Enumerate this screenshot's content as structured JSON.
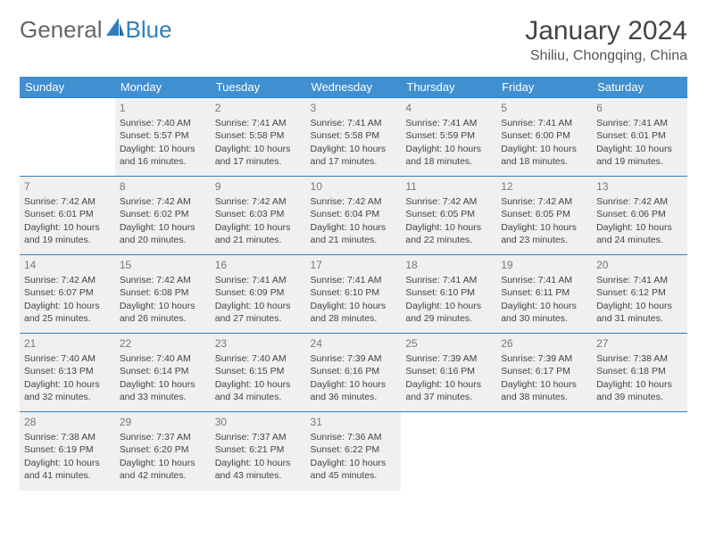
{
  "logo": {
    "text1": "General",
    "text2": "Blue"
  },
  "title": "January 2024",
  "location": "Shiliu, Chongqing, China",
  "colors": {
    "header_bg": "#3f8fd1",
    "border": "#2f7fbf",
    "dim_bg": "#f0f0f0",
    "text": "#444444"
  },
  "day_headers": [
    "Sunday",
    "Monday",
    "Tuesday",
    "Wednesday",
    "Thursday",
    "Friday",
    "Saturday"
  ],
  "weeks": [
    [
      {
        "num": "",
        "lines": []
      },
      {
        "num": "1",
        "lines": [
          "Sunrise: 7:40 AM",
          "Sunset: 5:57 PM",
          "Daylight: 10 hours",
          "and 16 minutes."
        ]
      },
      {
        "num": "2",
        "lines": [
          "Sunrise: 7:41 AM",
          "Sunset: 5:58 PM",
          "Daylight: 10 hours",
          "and 17 minutes."
        ]
      },
      {
        "num": "3",
        "lines": [
          "Sunrise: 7:41 AM",
          "Sunset: 5:58 PM",
          "Daylight: 10 hours",
          "and 17 minutes."
        ]
      },
      {
        "num": "4",
        "lines": [
          "Sunrise: 7:41 AM",
          "Sunset: 5:59 PM",
          "Daylight: 10 hours",
          "and 18 minutes."
        ]
      },
      {
        "num": "5",
        "lines": [
          "Sunrise: 7:41 AM",
          "Sunset: 6:00 PM",
          "Daylight: 10 hours",
          "and 18 minutes."
        ]
      },
      {
        "num": "6",
        "lines": [
          "Sunrise: 7:41 AM",
          "Sunset: 6:01 PM",
          "Daylight: 10 hours",
          "and 19 minutes."
        ]
      }
    ],
    [
      {
        "num": "7",
        "lines": [
          "Sunrise: 7:42 AM",
          "Sunset: 6:01 PM",
          "Daylight: 10 hours",
          "and 19 minutes."
        ]
      },
      {
        "num": "8",
        "lines": [
          "Sunrise: 7:42 AM",
          "Sunset: 6:02 PM",
          "Daylight: 10 hours",
          "and 20 minutes."
        ]
      },
      {
        "num": "9",
        "lines": [
          "Sunrise: 7:42 AM",
          "Sunset: 6:03 PM",
          "Daylight: 10 hours",
          "and 21 minutes."
        ]
      },
      {
        "num": "10",
        "lines": [
          "Sunrise: 7:42 AM",
          "Sunset: 6:04 PM",
          "Daylight: 10 hours",
          "and 21 minutes."
        ]
      },
      {
        "num": "11",
        "lines": [
          "Sunrise: 7:42 AM",
          "Sunset: 6:05 PM",
          "Daylight: 10 hours",
          "and 22 minutes."
        ]
      },
      {
        "num": "12",
        "lines": [
          "Sunrise: 7:42 AM",
          "Sunset: 6:05 PM",
          "Daylight: 10 hours",
          "and 23 minutes."
        ]
      },
      {
        "num": "13",
        "lines": [
          "Sunrise: 7:42 AM",
          "Sunset: 6:06 PM",
          "Daylight: 10 hours",
          "and 24 minutes."
        ]
      }
    ],
    [
      {
        "num": "14",
        "lines": [
          "Sunrise: 7:42 AM",
          "Sunset: 6:07 PM",
          "Daylight: 10 hours",
          "and 25 minutes."
        ]
      },
      {
        "num": "15",
        "lines": [
          "Sunrise: 7:42 AM",
          "Sunset: 6:08 PM",
          "Daylight: 10 hours",
          "and 26 minutes."
        ]
      },
      {
        "num": "16",
        "lines": [
          "Sunrise: 7:41 AM",
          "Sunset: 6:09 PM",
          "Daylight: 10 hours",
          "and 27 minutes."
        ]
      },
      {
        "num": "17",
        "lines": [
          "Sunrise: 7:41 AM",
          "Sunset: 6:10 PM",
          "Daylight: 10 hours",
          "and 28 minutes."
        ]
      },
      {
        "num": "18",
        "lines": [
          "Sunrise: 7:41 AM",
          "Sunset: 6:10 PM",
          "Daylight: 10 hours",
          "and 29 minutes."
        ]
      },
      {
        "num": "19",
        "lines": [
          "Sunrise: 7:41 AM",
          "Sunset: 6:11 PM",
          "Daylight: 10 hours",
          "and 30 minutes."
        ]
      },
      {
        "num": "20",
        "lines": [
          "Sunrise: 7:41 AM",
          "Sunset: 6:12 PM",
          "Daylight: 10 hours",
          "and 31 minutes."
        ]
      }
    ],
    [
      {
        "num": "21",
        "lines": [
          "Sunrise: 7:40 AM",
          "Sunset: 6:13 PM",
          "Daylight: 10 hours",
          "and 32 minutes."
        ]
      },
      {
        "num": "22",
        "lines": [
          "Sunrise: 7:40 AM",
          "Sunset: 6:14 PM",
          "Daylight: 10 hours",
          "and 33 minutes."
        ]
      },
      {
        "num": "23",
        "lines": [
          "Sunrise: 7:40 AM",
          "Sunset: 6:15 PM",
          "Daylight: 10 hours",
          "and 34 minutes."
        ]
      },
      {
        "num": "24",
        "lines": [
          "Sunrise: 7:39 AM",
          "Sunset: 6:16 PM",
          "Daylight: 10 hours",
          "and 36 minutes."
        ]
      },
      {
        "num": "25",
        "lines": [
          "Sunrise: 7:39 AM",
          "Sunset: 6:16 PM",
          "Daylight: 10 hours",
          "and 37 minutes."
        ]
      },
      {
        "num": "26",
        "lines": [
          "Sunrise: 7:39 AM",
          "Sunset: 6:17 PM",
          "Daylight: 10 hours",
          "and 38 minutes."
        ]
      },
      {
        "num": "27",
        "lines": [
          "Sunrise: 7:38 AM",
          "Sunset: 6:18 PM",
          "Daylight: 10 hours",
          "and 39 minutes."
        ]
      }
    ],
    [
      {
        "num": "28",
        "lines": [
          "Sunrise: 7:38 AM",
          "Sunset: 6:19 PM",
          "Daylight: 10 hours",
          "and 41 minutes."
        ]
      },
      {
        "num": "29",
        "lines": [
          "Sunrise: 7:37 AM",
          "Sunset: 6:20 PM",
          "Daylight: 10 hours",
          "and 42 minutes."
        ]
      },
      {
        "num": "30",
        "lines": [
          "Sunrise: 7:37 AM",
          "Sunset: 6:21 PM",
          "Daylight: 10 hours",
          "and 43 minutes."
        ]
      },
      {
        "num": "31",
        "lines": [
          "Sunrise: 7:36 AM",
          "Sunset: 6:22 PM",
          "Daylight: 10 hours",
          "and 45 minutes."
        ]
      },
      {
        "num": "",
        "lines": []
      },
      {
        "num": "",
        "lines": []
      },
      {
        "num": "",
        "lines": []
      }
    ]
  ]
}
